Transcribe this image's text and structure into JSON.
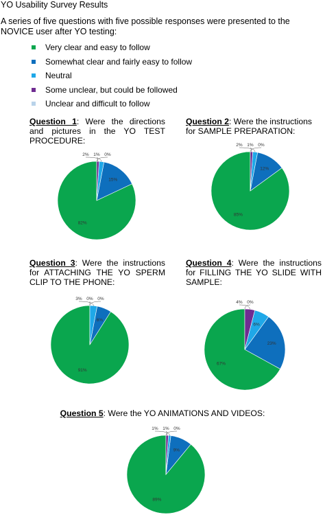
{
  "title": "YO Usability Survey Results",
  "intro": "A series of five questions with five possible responses were presented to the NOVICE user after YO testing:",
  "legend": [
    {
      "label": "Very clear and easy to follow",
      "color": "#0aa64e"
    },
    {
      "label": "Somewhat clear and fairly easy to follow",
      "color": "#0e6fbd"
    },
    {
      "label": "Neutral",
      "color": "#1fa8e8"
    },
    {
      "label": "Some unclear, but could be followed",
      "color": "#6f2c91"
    },
    {
      "label": "Unclear and difficult to follow",
      "color": "#b9d3ea"
    }
  ],
  "questions": [
    {
      "num": "Question 1",
      "text": ": Were the directions and pictures in the YO TEST PROCEDURE:"
    },
    {
      "num": "Question 2",
      "text": ": Were the instructions for SAMPLE PREPARATION:"
    },
    {
      "num": "Question 3",
      "text": ": Were the instructions for ATTACHING THE YO SPERM CLIP TO THE PHONE:"
    },
    {
      "num": "Question 4",
      "text": ": Were the instructions for FILLING THE YO SLIDE WITH SAMPLE:"
    },
    {
      "num": "Question 5",
      "text": ": Were the YO ANIMATIONS AND VIDEOS:"
    }
  ],
  "chart_data": [
    {
      "type": "pie",
      "title": "Question 1: Were the directions and pictures in the YO TEST PROCEDURE:",
      "categories": [
        "Very clear and easy to follow",
        "Somewhat clear and fairly easy to follow",
        "Neutral",
        "Some unclear, but could be followed",
        "Unclear and difficult to follow"
      ],
      "values": [
        82,
        15,
        2,
        1,
        0
      ],
      "labels": [
        "82%",
        "15%",
        "2%",
        "1%",
        "0%"
      ]
    },
    {
      "type": "pie",
      "title": "Question 2: Were the instructions for SAMPLE PREPARATION:",
      "categories": [
        "Very clear and easy to follow",
        "Somewhat clear and fairly easy to follow",
        "Neutral",
        "Some unclear, but could be followed",
        "Unclear and difficult to follow"
      ],
      "values": [
        85,
        12,
        2,
        1,
        0
      ],
      "labels": [
        "85%",
        "12%",
        "2%",
        "1%",
        "0%"
      ]
    },
    {
      "type": "pie",
      "title": "Question 3: Were the instructions for ATTACHING THE YO SPERM CLIP TO THE PHONE:",
      "categories": [
        "Very clear and easy to follow",
        "Somewhat clear and fairly easy to follow",
        "Neutral",
        "Some unclear, but could be followed",
        "Unclear and difficult to follow"
      ],
      "values": [
        91,
        6,
        3,
        0,
        0
      ],
      "labels": [
        "91%",
        "6%",
        "3%",
        "0%",
        "0%"
      ]
    },
    {
      "type": "pie",
      "title": "Question 4: Were the instructions for FILLING THE YO SLIDE WITH SAMPLE:",
      "categories": [
        "Very clear and easy to follow",
        "Somewhat clear and fairly easy to follow",
        "Neutral",
        "Some unclear, but could be followed",
        "Unclear and difficult to follow"
      ],
      "values": [
        67,
        23,
        6,
        4,
        0
      ],
      "labels": [
        "67%",
        "23%",
        "6%",
        "4%",
        "0%"
      ]
    },
    {
      "type": "pie",
      "title": "Question 5: Were the YO ANIMATIONS AND VIDEOS:",
      "categories": [
        "Very clear and easy to follow",
        "Somewhat clear and fairly easy to follow",
        "Neutral",
        "Some unclear, but could be followed",
        "Unclear and difficult to follow"
      ],
      "values": [
        89,
        9,
        1,
        1,
        0
      ],
      "labels": [
        "89%",
        "9%",
        "1%",
        "1%",
        "0%"
      ]
    }
  ]
}
